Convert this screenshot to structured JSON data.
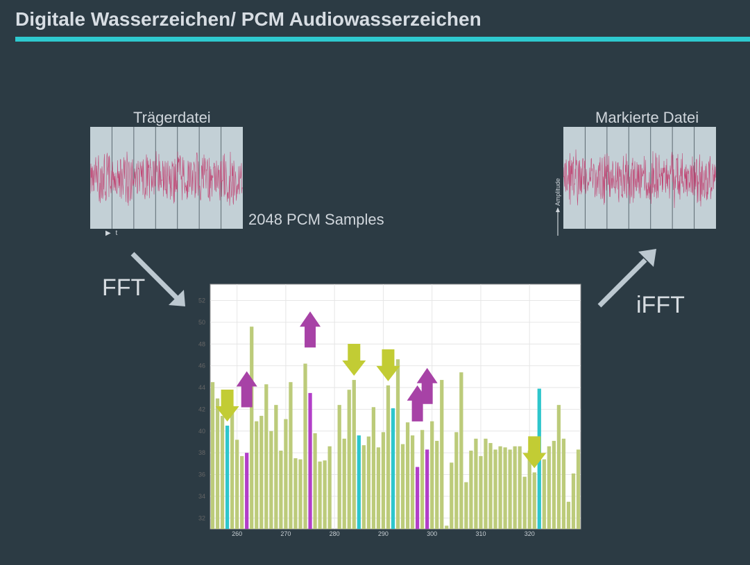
{
  "slide": {
    "title": "Digitale Wasserzeichen/ PCM Audiowasserzeichen",
    "carrier_label": "Trägerdatei",
    "marked_label": "Markierte Datei",
    "samples_label": "2048 PCM Samples",
    "fft_label": "FFT",
    "ifft_label": "iFFT",
    "time_axis_label": "t",
    "amplitude_label": "Amplitude"
  },
  "colors": {
    "background": "#2c3b44",
    "title_rule": "#2ec9cf",
    "waveform": "#c0386a",
    "bar_default": "#bccb7a",
    "bar_cyan": "#2ec6cc",
    "bar_purple": "#b23ec8",
    "arrow_down": "#c2cc34",
    "arrow_up": "#a742a6",
    "flow_arrow": "#bcc8d0"
  },
  "chart_data": {
    "type": "bar",
    "x_start": 255,
    "values": [
      44.5,
      43,
      41.4,
      40.5,
      42.3,
      39.2,
      37.7,
      38,
      49.6,
      40.9,
      41.4,
      44.3,
      40,
      42.4,
      38.2,
      41.1,
      44.5,
      37.5,
      37.4,
      46.2,
      43.5,
      39.8,
      37.2,
      37.3,
      38.6,
      31,
      42.4,
      39.3,
      43.8,
      44.7,
      39.6,
      38.7,
      39.5,
      42.2,
      38.5,
      39.9,
      44.2,
      42.1,
      46.6,
      38.8,
      40.8,
      39.6,
      36.7,
      40.1,
      38.3,
      40.9,
      39.1,
      44.7,
      31.3,
      37.1,
      39.9,
      45.4,
      35.3,
      38.2,
      39.3,
      37.7,
      39.3,
      38.9,
      38.3,
      38.6,
      38.5,
      38.3,
      38.6,
      38.6,
      35.8,
      38.2,
      36.2,
      43.9,
      37.4,
      38.6,
      39.1,
      42.4,
      39.3,
      33.5,
      36.1,
      38.3
    ],
    "highlights_cyan_x": [
      258,
      285,
      292,
      322
    ],
    "highlights_purple_x": [
      262,
      275,
      297,
      299
    ],
    "arrows_down_x": [
      258,
      284,
      291,
      321
    ],
    "arrows_up_x": [
      262,
      275,
      297,
      299
    ],
    "xticks": [
      260,
      270,
      280,
      290,
      300,
      310,
      320
    ],
    "yticks": [
      32,
      34,
      36,
      38,
      40,
      42,
      44,
      46,
      48,
      50,
      52
    ],
    "xlim": [
      254.5,
      330.5
    ],
    "ylim": [
      31,
      53.5
    ],
    "grid": true
  }
}
